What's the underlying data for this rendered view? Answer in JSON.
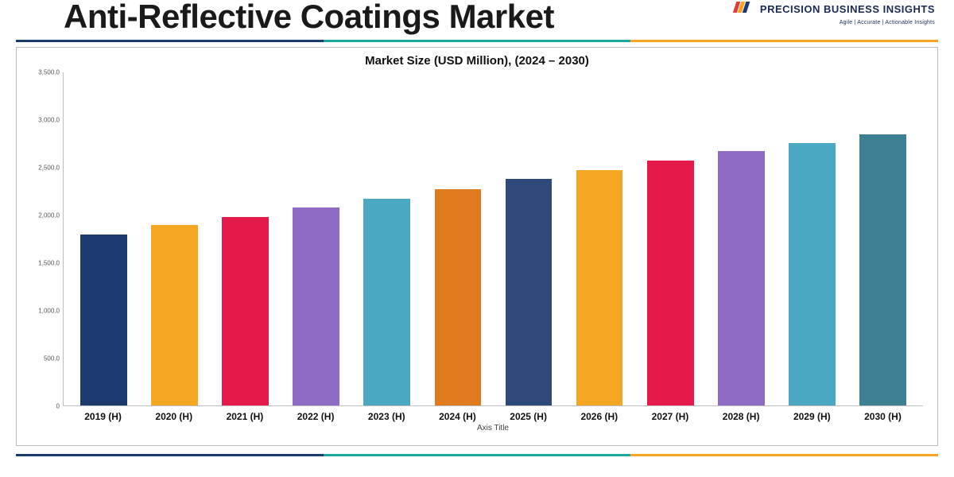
{
  "header": {
    "title": "Anti-Reflective Coatings Market",
    "logo_brand": "PRECISION BUSINESS INSIGHTS",
    "logo_tagline": "Agile | Accurate | Actionable Insights",
    "logo_colors": [
      "#e03c3c",
      "#f5a623",
      "#1c3a6e"
    ]
  },
  "rule_colors": {
    "navy": "#1c3a6e",
    "teal": "#1aa79c",
    "orange": "#f5a623"
  },
  "chart": {
    "type": "bar",
    "title": "Market Size (USD Million), (2024 – 2030)",
    "title_fontsize": 15,
    "axis_label": "Axis Title",
    "axis_label_fontsize": 10,
    "xlabel_fontsize": 12,
    "ytick_fontsize": 8,
    "background_color": "#ffffff",
    "border_color": "#bfbfbf",
    "ylim": [
      0,
      3500
    ],
    "ytick_step": 500,
    "yticks": [
      "0",
      "500.0",
      "1,000.0",
      "1,500.0",
      "2,000.0",
      "2,500.0",
      "3,000.0",
      "3,500.0"
    ],
    "bar_width": 0.66,
    "categories": [
      "2019 (H)",
      "2020 (H)",
      "2021 (H)",
      "2022 (H)",
      "2023 (H)",
      "2024 (H)",
      "2025 (H)",
      "2026 (H)",
      "2027 (H)",
      "2028 (H)",
      "2029 (H)",
      "2030 (H)"
    ],
    "values": [
      1800,
      1900,
      1980,
      2080,
      2170,
      2270,
      2380,
      2470,
      2570,
      2670,
      2760,
      2850
    ],
    "bar_colors": [
      "#1c3a6e",
      "#f5a623",
      "#e6194b",
      "#8e6cc5",
      "#4aa8c2",
      "#e07b1f",
      "#2f4a7a",
      "#f5a623",
      "#e6194b",
      "#8e6cc5",
      "#4aa8c2",
      "#3d7f93"
    ]
  }
}
